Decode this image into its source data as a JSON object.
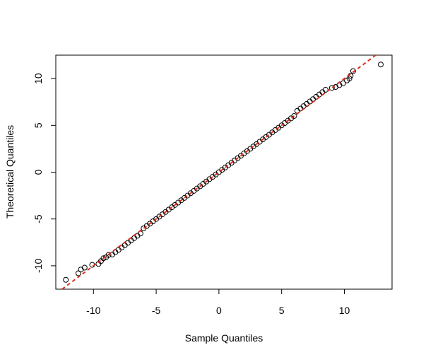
{
  "chart_data": {
    "type": "scatter",
    "xlabel": "Sample Quantiles",
    "ylabel": "Theoretical Quantiles",
    "x": [
      -12.2,
      -11.2,
      -11.0,
      -10.7,
      -10.1,
      -9.6,
      -9.4,
      -9.2,
      -9.0,
      -8.8,
      -8.5,
      -8.25,
      -8,
      -7.75,
      -7.5,
      -7.25,
      -7,
      -6.75,
      -6.5,
      -6.25,
      -6,
      -5.75,
      -5.5,
      -5.25,
      -5,
      -4.75,
      -4.5,
      -4.25,
      -4,
      -3.75,
      -3.5,
      -3.25,
      -3,
      -2.75,
      -2.5,
      -2.25,
      -2,
      -1.75,
      -1.5,
      -1.25,
      -1,
      -0.75,
      -0.5,
      -0.25,
      0,
      0.25,
      0.5,
      0.75,
      1,
      1.25,
      1.5,
      1.75,
      2,
      2.25,
      2.5,
      2.75,
      3,
      3.25,
      3.5,
      3.75,
      4,
      4.25,
      4.5,
      4.75,
      5,
      5.25,
      5.5,
      5.75,
      6,
      6.25,
      6.5,
      6.75,
      7,
      7.25,
      7.5,
      7.75,
      8,
      8.25,
      8.5,
      9.0,
      9.3,
      9.6,
      9.9,
      10.2,
      10.4,
      10.5,
      10.7,
      12.9
    ],
    "y": [
      -11.5,
      -10.8,
      -10.4,
      -10.2,
      -9.9,
      -9.8,
      -9.5,
      -9.2,
      -9.1,
      -8.85,
      -8.8,
      -8.55,
      -8.3,
      -8.05,
      -7.8,
      -7.55,
      -7.3,
      -7.05,
      -6.8,
      -6.55,
      -6,
      -5.75,
      -5.5,
      -5.25,
      -5,
      -4.75,
      -4.5,
      -4.25,
      -4,
      -3.75,
      -3.5,
      -3.25,
      -3,
      -2.75,
      -2.5,
      -2.25,
      -2,
      -1.75,
      -1.5,
      -1.25,
      -1,
      -0.75,
      -0.5,
      -0.25,
      0,
      0.25,
      0.5,
      0.75,
      1,
      1.25,
      1.5,
      1.75,
      2,
      2.25,
      2.5,
      2.75,
      3,
      3.25,
      3.5,
      3.75,
      4,
      4.25,
      4.5,
      4.75,
      5,
      5.25,
      5.5,
      5.75,
      6,
      6.55,
      6.8,
      7.05,
      7.3,
      7.55,
      7.8,
      8.05,
      8.3,
      8.55,
      8.8,
      9.0,
      9.1,
      9.3,
      9.5,
      9.8,
      10.0,
      10.3,
      10.8,
      11.5
    ],
    "color": "#000000",
    "reference_line": {
      "x": [
        -12.5,
        12.5
      ],
      "y": [
        -12.5,
        12.5
      ],
      "color": "#e0301e",
      "style": "dashed"
    },
    "xlim": [
      -13,
      13.8
    ],
    "ylim": [
      -12.5,
      12.5
    ],
    "xticks": [
      -10,
      -5,
      0,
      5,
      10
    ],
    "yticks": [
      -10,
      -5,
      0,
      5,
      10
    ]
  }
}
